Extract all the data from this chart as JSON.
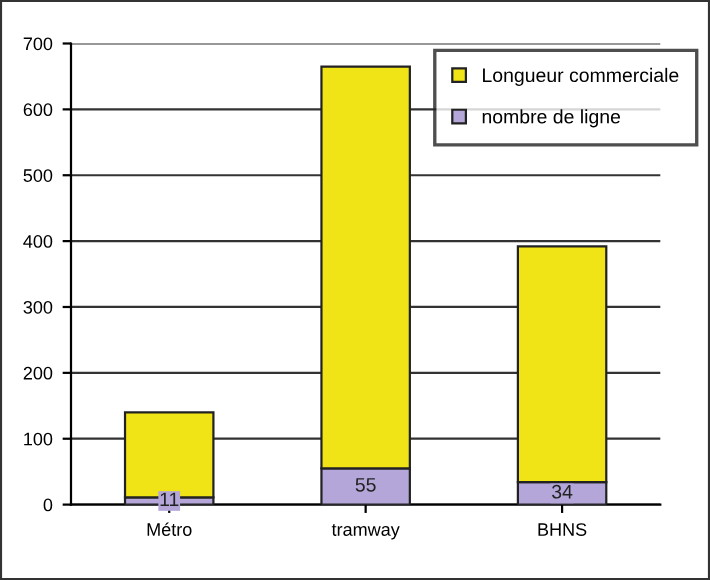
{
  "chart_data": {
    "type": "bar",
    "stacked": true,
    "categories": [
      "Métro",
      "tramway",
      "BHNS"
    ],
    "series": [
      {
        "name": "nombre de ligne",
        "color": "#b4a6d8",
        "values": [
          11,
          55,
          34
        ],
        "value_labels": [
          "11",
          "55",
          "34"
        ]
      },
      {
        "name": "Longueur commerciale",
        "color": "#f0e316",
        "values": [
          129,
          610,
          358
        ]
      }
    ],
    "ylim": [
      0,
      700
    ],
    "yticks": [
      0,
      100,
      200,
      300,
      400,
      500,
      600,
      700
    ],
    "grid": "y",
    "legend": "top right"
  }
}
